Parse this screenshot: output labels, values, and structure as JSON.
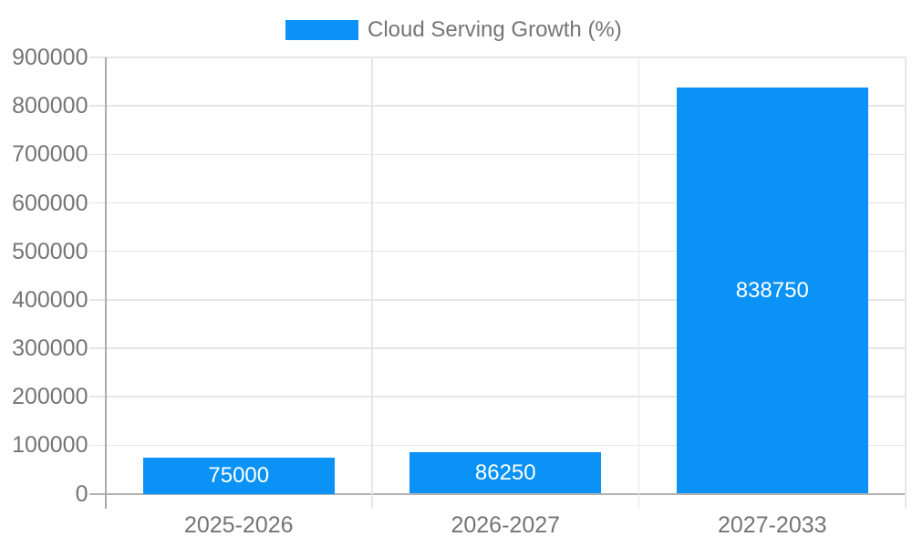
{
  "chart_data": {
    "type": "bar",
    "legend_label": "Cloud Serving Growth (%)",
    "legend_position": "top",
    "categories": [
      "2025-2026",
      "2026-2027",
      "2027-2033"
    ],
    "series": [
      {
        "name": "Cloud Serving Growth (%)",
        "values": [
          75000,
          86250,
          838750
        ]
      }
    ],
    "bar_value_labels": [
      "75000",
      "86250",
      "838750"
    ],
    "y_ticks": [
      0,
      100000,
      200000,
      300000,
      400000,
      500000,
      600000,
      700000,
      800000,
      900000
    ],
    "y_tick_labels": [
      "0",
      "100000",
      "200000",
      "300000",
      "400000",
      "500000",
      "600000",
      "700000",
      "800000",
      "900000"
    ],
    "ylim": [
      0,
      900000
    ],
    "xlabel": "",
    "ylabel": "",
    "grid": true,
    "colors": {
      "accent": "#0a92f6",
      "grid": "#e6e6e6",
      "axis": "#ababab",
      "base": "#b2b2b2",
      "txt": "#757575",
      "barlab": "#ffffff"
    }
  }
}
